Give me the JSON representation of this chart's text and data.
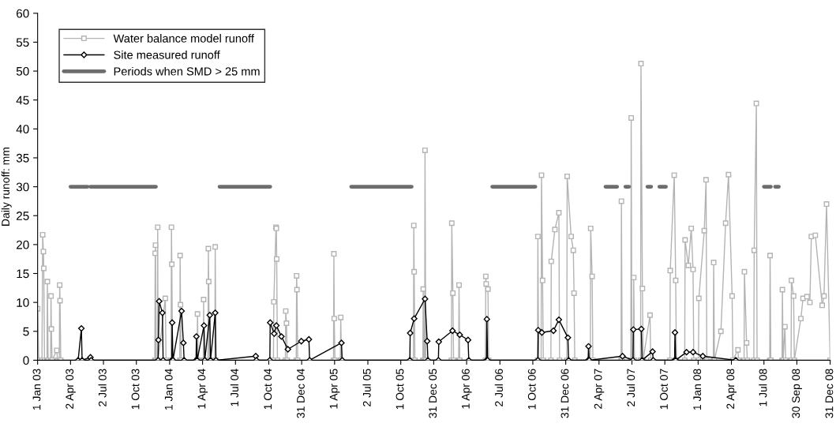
{
  "chart_data": {
    "type": "line",
    "ylabel": "Daily runoff: mm",
    "xlim": [
      "2003-01-01",
      "2008-12-31"
    ],
    "ylim": [
      0,
      60
    ],
    "yticks": [
      0,
      5,
      10,
      15,
      20,
      25,
      30,
      35,
      40,
      45,
      50,
      55,
      60
    ],
    "xticks": [
      {
        "value": "2003-01-01",
        "label": "1 Jan 03"
      },
      {
        "value": "2003-04-02",
        "label": "2 Apr 03"
      },
      {
        "value": "2003-07-02",
        "label": "2 Jul 03"
      },
      {
        "value": "2003-10-01",
        "label": "1 Oct 03"
      },
      {
        "value": "2004-01-01",
        "label": "1 Jan 04"
      },
      {
        "value": "2004-04-01",
        "label": "1 Apr 04"
      },
      {
        "value": "2004-07-01",
        "label": "1 Jul 04"
      },
      {
        "value": "2004-10-01",
        "label": "1 Oct 04"
      },
      {
        "value": "2004-12-31",
        "label": "31 Dec 04"
      },
      {
        "value": "2005-04-01",
        "label": "1 Apr 05"
      },
      {
        "value": "2005-07-02",
        "label": "2 Jul 05"
      },
      {
        "value": "2005-10-01",
        "label": "1 Oct 05"
      },
      {
        "value": "2005-12-31",
        "label": "31 Dec 05"
      },
      {
        "value": "2006-04-01",
        "label": "1 Apr 06"
      },
      {
        "value": "2006-07-02",
        "label": "2 Jul 06"
      },
      {
        "value": "2006-10-01",
        "label": "1 Oct 06"
      },
      {
        "value": "2006-12-31",
        "label": "31 Dec 06"
      },
      {
        "value": "2007-04-02",
        "label": "2 Apr 07"
      },
      {
        "value": "2007-07-02",
        "label": "2 Jul 07"
      },
      {
        "value": "2007-10-01",
        "label": "1 Oct 07"
      },
      {
        "value": "2008-01-01",
        "label": "1 Jan 08"
      },
      {
        "value": "2008-04-02",
        "label": "2 Apr 08"
      },
      {
        "value": "2008-07-01",
        "label": "1 Jul 08"
      },
      {
        "value": "2008-09-30",
        "label": "30 Sep 08"
      },
      {
        "value": "2008-12-31",
        "label": "31 Dec 08"
      }
    ],
    "grid": false,
    "legend": "top left",
    "line_style": "solid",
    "series": [
      {
        "name": "Water balance model runoff",
        "color": "#b3b3b3",
        "marker": "square",
        "x": [
          "2003-01-01",
          "2003-01-04",
          "2003-01-13",
          "2003-01-15",
          "2003-01-17",
          "2003-01-18",
          "2003-01-20",
          "2003-01-27",
          "2003-01-28",
          "2003-01-30",
          "2003-02-06",
          "2003-02-07",
          "2003-02-08",
          "2003-02-10",
          "2003-02-23",
          "2003-02-25",
          "2003-03-02",
          "2003-03-03",
          "2003-03-04",
          "2003-03-06",
          "2003-11-21",
          "2003-11-22",
          "2003-11-23",
          "2003-11-24",
          "2003-11-28",
          "2003-11-29",
          "2003-11-30",
          "2003-12-20",
          "2003-12-22",
          "2004-01-05",
          "2004-01-06",
          "2004-01-07",
          "2004-01-09",
          "2004-01-29",
          "2004-01-30",
          "2004-01-31",
          "2004-02-02",
          "2004-03-17",
          "2004-03-18",
          "2004-03-20",
          "2004-04-03",
          "2004-04-04",
          "2004-04-05",
          "2004-04-16",
          "2004-04-17",
          "2004-04-18",
          "2004-04-20",
          "2004-05-05",
          "2004-05-06",
          "2004-05-08",
          "2004-10-14",
          "2004-10-15",
          "2004-10-21",
          "2004-10-22",
          "2004-10-23",
          "2004-10-25",
          "2004-11-16",
          "2004-11-17",
          "2004-11-19",
          "2004-11-21",
          "2004-12-16",
          "2004-12-17",
          "2004-12-18",
          "2004-12-20",
          "2005-03-29",
          "2005-03-30",
          "2005-03-31",
          "2005-04-02",
          "2005-04-17",
          "2005-04-18",
          "2005-04-20",
          "2005-11-05",
          "2005-11-06",
          "2005-11-07",
          "2005-11-09",
          "2005-12-01",
          "2005-12-02",
          "2005-12-04",
          "2005-12-06",
          "2005-12-07",
          "2005-12-09",
          "2006-02-18",
          "2006-02-19",
          "2006-02-22",
          "2006-02-24",
          "2006-03-10",
          "2006-03-11",
          "2006-03-13",
          "2006-05-23",
          "2006-05-24",
          "2006-05-25",
          "2006-05-30",
          "2006-06-01",
          "2006-10-14",
          "2006-10-15",
          "2006-10-17",
          "2006-10-24",
          "2006-10-25",
          "2006-10-28",
          "2006-10-30",
          "2006-11-20",
          "2006-11-21",
          "2006-12-01",
          "2006-12-12",
          "2006-12-14",
          "2007-01-03",
          "2007-01-04",
          "2007-01-15",
          "2007-01-21",
          "2007-01-23",
          "2007-01-25",
          "2007-03-09",
          "2007-03-10",
          "2007-03-14",
          "2007-03-16",
          "2007-06-02",
          "2007-06-03",
          "2007-06-05",
          "2007-06-29",
          "2007-06-30",
          "2007-07-02",
          "2007-07-06",
          "2007-07-07",
          "2007-07-09",
          "2007-07-26",
          "2007-07-27",
          "2007-07-31",
          "2007-08-02",
          "2007-08-21",
          "2007-08-23",
          "2007-10-15",
          "2007-10-16",
          "2007-10-27",
          "2007-10-31",
          "2007-11-02",
          "2007-11-25",
          "2007-11-26",
          "2007-12-05",
          "2007-12-13",
          "2007-12-18",
          "2007-12-20",
          "2008-01-02",
          "2008-01-03",
          "2008-01-18",
          "2008-01-23",
          "2008-01-25",
          "2008-02-12",
          "2008-02-13",
          "2008-02-15",
          "2008-03-04",
          "2008-03-17",
          "2008-03-25",
          "2008-04-04",
          "2008-04-06",
          "2008-04-20",
          "2008-04-22",
          "2008-05-07",
          "2008-05-08",
          "2008-05-14",
          "2008-05-16",
          "2008-06-03",
          "2008-06-04",
          "2008-06-10",
          "2008-06-12",
          "2008-07-17",
          "2008-07-18",
          "2008-07-20",
          "2008-08-20",
          "2008-08-21",
          "2008-08-23",
          "2008-08-28",
          "2008-08-30",
          "2008-09-14",
          "2008-09-15",
          "2008-09-21",
          "2008-09-23",
          "2008-10-11",
          "2008-10-17",
          "2008-10-28",
          "2008-11-05",
          "2008-11-09",
          "2008-11-20",
          "2008-12-09",
          "2008-12-14",
          "2008-12-21",
          "2008-12-31"
        ],
        "values": [
          8.9,
          0,
          0,
          21.7,
          18.8,
          15.9,
          0,
          0,
          13.6,
          0,
          0,
          11.1,
          5.4,
          0,
          1.7,
          0,
          0,
          13.0,
          10.3,
          0,
          0,
          18.5,
          19.9,
          0,
          0,
          23.0,
          0,
          10.7,
          0,
          0,
          23.0,
          16.6,
          0,
          0,
          18.1,
          9.6,
          0,
          0,
          8.0,
          0,
          0,
          10.5,
          0,
          0,
          19.3,
          13.6,
          0,
          0,
          19.6,
          0,
          0,
          10.1,
          23.0,
          22.8,
          17.5,
          0,
          0,
          8.5,
          6.4,
          0,
          0,
          14.6,
          12.2,
          0,
          0,
          18.4,
          7.2,
          0,
          0,
          7.4,
          0,
          0,
          23.3,
          15.3,
          0,
          0,
          12.3,
          0,
          0,
          36.3,
          0,
          0,
          23.7,
          11.6,
          0,
          0,
          13.0,
          0,
          0,
          14.5,
          13.2,
          12.3,
          0,
          0,
          21.4,
          0,
          0,
          32.0,
          13.8,
          0,
          0,
          17.1,
          22.6,
          25.5,
          0,
          0,
          31.8,
          21.4,
          19.0,
          11.6,
          0,
          0,
          22.8,
          14.5,
          0,
          0,
          27.5,
          0,
          0,
          41.9,
          0,
          0,
          14.3,
          0,
          0,
          51.3,
          12.4,
          0,
          7.8,
          0,
          0,
          15.5,
          32.0,
          13.8,
          0,
          0,
          20.8,
          16.4,
          22.8,
          15.7,
          0,
          0,
          10.7,
          22.4,
          31.2,
          0,
          0,
          16.9,
          0,
          5.0,
          23.7,
          32.1,
          11.1,
          0,
          1.8,
          0,
          0,
          15.3,
          3.0,
          0,
          0,
          19.0,
          44.4,
          0,
          0,
          18.1,
          0,
          0,
          12.2,
          0,
          5.8,
          0,
          0,
          13.8,
          11.1,
          0,
          7.2,
          10.7,
          11.0,
          10.0,
          21.4,
          21.6,
          9.5,
          11.1,
          27.0,
          0
        ]
      },
      {
        "name": "Site measured runoff",
        "color": "#000000",
        "marker": "diamond",
        "x": [
          "2003-04-23",
          "2003-05-02",
          "2003-05-04",
          "2003-05-27",
          "2003-05-29",
          "2003-11-30",
          "2003-12-01",
          "2003-12-03",
          "2003-12-12",
          "2003-12-14",
          "2004-01-07",
          "2004-01-08",
          "2004-01-10",
          "2004-02-03",
          "2004-02-08",
          "2004-02-10",
          "2004-03-14",
          "2004-03-15",
          "2004-03-17",
          "2004-04-05",
          "2004-04-07",
          "2004-04-21",
          "2004-04-23",
          "2004-05-06",
          "2004-05-08",
          "2004-08-26",
          "2004-08-28",
          "2004-10-04",
          "2004-10-05",
          "2004-10-16",
          "2004-10-22",
          "2004-11-05",
          "2004-11-23",
          "2004-12-30",
          "2005-01-20",
          "2005-01-22",
          "2005-04-20",
          "2005-04-22",
          "2005-10-26",
          "2005-10-27",
          "2005-11-07",
          "2005-12-07",
          "2005-12-13",
          "2005-12-15",
          "2006-01-13",
          "2006-01-14",
          "2006-02-21",
          "2006-03-13",
          "2006-04-05",
          "2006-04-07",
          "2006-05-26",
          "2006-05-27",
          "2006-05-29",
          "2006-10-15",
          "2006-10-16",
          "2006-10-26",
          "2006-11-27",
          "2006-12-12",
          "2007-01-06",
          "2007-01-08",
          "2007-03-03",
          "2007-03-04",
          "2007-03-06",
          "2007-06-06",
          "2007-07-05",
          "2007-07-06",
          "2007-07-28",
          "2007-07-30",
          "2007-08-28",
          "2007-08-30",
          "2007-10-28",
          "2007-10-29",
          "2007-10-31",
          "2007-11-30",
          "2007-12-18",
          "2008-01-14",
          "2008-04-14"
        ],
        "values": [
          0,
          5.5,
          0,
          0.5,
          0,
          0,
          3.5,
          10.2,
          8.2,
          0,
          0,
          6.5,
          0,
          8.5,
          3.0,
          0,
          0,
          4.1,
          0,
          6.0,
          0,
          7.8,
          0,
          8.2,
          0,
          0.7,
          0,
          0,
          6.5,
          4.6,
          6.0,
          4.1,
          1.9,
          3.3,
          3.6,
          0,
          3.0,
          0,
          0,
          4.7,
          7.2,
          10.6,
          3.3,
          0,
          0,
          3.2,
          5.1,
          4.4,
          3.5,
          0,
          0,
          7.1,
          0,
          0,
          5.2,
          4.8,
          5.1,
          7.0,
          3.9,
          0,
          0,
          2.4,
          0,
          0.7,
          0,
          5.3,
          5.4,
          0,
          1.5,
          0,
          0,
          4.8,
          0,
          1.4,
          1.4,
          0.7,
          0
        ]
      },
      {
        "name": "Periods when SMD > 25 mm",
        "color": "#6d6d6d",
        "marker": "none",
        "x": [
          "2003-04-02",
          "2003-05-19",
          "2003-05-23",
          "2003-05-27",
          "2003-11-24",
          "2004-02-01",
          "2004-05-18",
          "2004-10-05",
          "2005-01-01",
          "2005-05-17",
          "2005-10-31",
          "2006-01-01",
          "2006-06-11",
          "2006-10-08",
          "2007-01-01",
          "2007-04-20",
          "2007-05-22",
          "2007-06-01",
          "2007-06-14",
          "2007-06-24",
          "2007-07-01",
          "2007-08-14",
          "2007-08-24",
          "2007-09-01",
          "2007-09-16",
          "2007-10-04",
          "2008-01-01",
          "2008-07-01",
          "2008-07-20",
          "2008-07-28",
          "2008-08-01",
          "2008-08-11"
        ],
        "values": [
          30,
          30,
          null,
          30,
          30,
          null,
          30,
          30,
          null,
          30,
          30,
          null,
          30,
          30,
          null,
          30,
          30,
          null,
          30,
          30,
          null,
          30,
          30,
          null,
          30,
          30,
          null,
          30,
          30,
          null,
          30,
          30
        ]
      }
    ]
  }
}
